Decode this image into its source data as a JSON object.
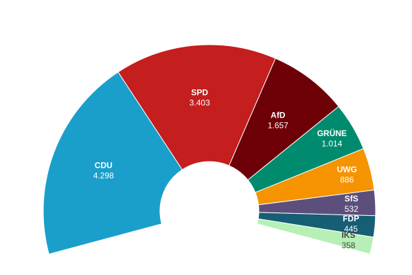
{
  "chart_data": {
    "type": "pie",
    "variant": "semicircle-parliament",
    "categories": [
      "CDU",
      "SPD",
      "AfD",
      "GRÜNE",
      "UWG",
      "SfS",
      "FDP",
      "IKS"
    ],
    "values": [
      4298,
      3403,
      1657,
      1014,
      886,
      532,
      445,
      358
    ],
    "value_labels": [
      "4.298",
      "3.403",
      "1.657",
      "1.014",
      "886",
      "532",
      "445",
      "358"
    ],
    "colors": [
      "#1a9fcb",
      "#c41e1e",
      "#6e0008",
      "#008b6e",
      "#f59300",
      "#5d4f7c",
      "#155e74",
      "#b6f0b6"
    ],
    "label_text_dark": [
      false,
      false,
      false,
      false,
      false,
      false,
      false,
      true
    ],
    "legend": "none",
    "grid": false
  }
}
